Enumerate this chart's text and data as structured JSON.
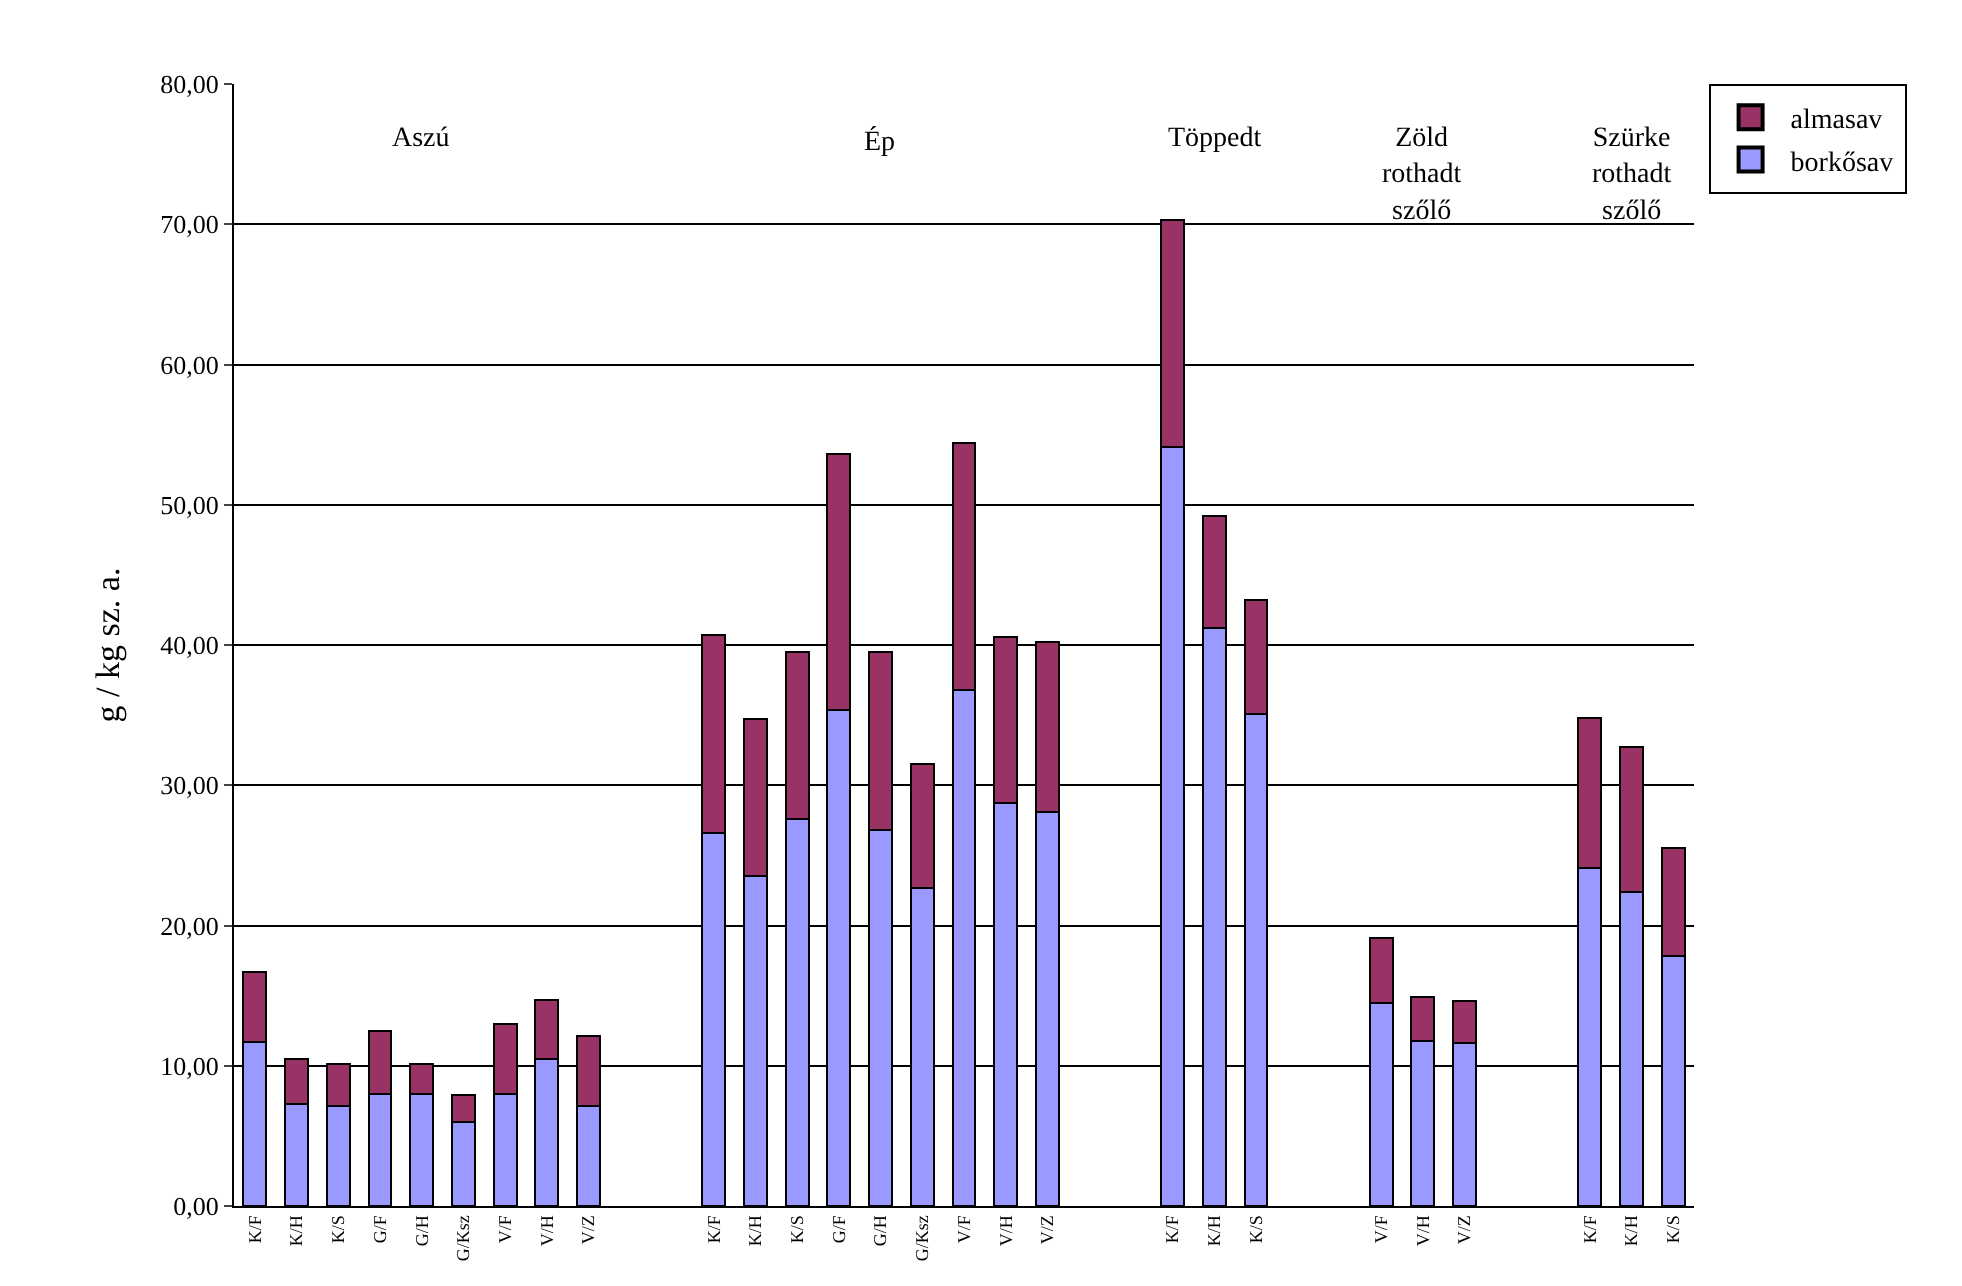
{
  "chart_data": {
    "type": "bar",
    "stacked": true,
    "ylabel": "g / kg sz. a.",
    "categories": [
      "K/F",
      "K/H",
      "K/S",
      "G/F",
      "G/H",
      "G/Ksz",
      "V/F",
      "V/H",
      "V/Z",
      null,
      null,
      "K/F",
      "K/H",
      "K/S",
      "G/F",
      "G/H",
      "G/Ksz",
      "V/F",
      "V/H",
      "V/Z",
      null,
      null,
      "K/F",
      "K/H",
      "K/S",
      null,
      null,
      "V/F",
      "V/H",
      "V/Z",
      null,
      null,
      "K/F",
      "K/H",
      "K/S"
    ],
    "series": [
      {
        "name": "borkősav",
        "color": "#9999ff",
        "values": [
          11.7,
          7.3,
          7.1,
          8.0,
          8.0,
          6.0,
          8.0,
          10.5,
          7.1,
          null,
          null,
          26.6,
          23.5,
          27.6,
          35.4,
          26.8,
          22.7,
          36.8,
          28.7,
          28.1,
          null,
          null,
          54.1,
          41.2,
          35.1,
          null,
          null,
          14.5,
          11.8,
          11.6,
          null,
          null,
          24.1,
          22.4,
          17.8
        ]
      },
      {
        "name": "almasav",
        "color": "#993366",
        "values": [
          5.0,
          3.2,
          3.0,
          4.5,
          2.1,
          1.9,
          5.0,
          4.2,
          5.0,
          null,
          null,
          14.1,
          11.2,
          11.9,
          18.2,
          12.7,
          8.8,
          17.6,
          11.9,
          12.1,
          null,
          null,
          16.2,
          8.0,
          8.1,
          null,
          null,
          4.6,
          3.1,
          3.0,
          null,
          null,
          10.7,
          10.3,
          7.7
        ]
      }
    ],
    "ylim": [
      0,
      80
    ],
    "yticks": [
      {
        "value": 0,
        "label": "0,00"
      },
      {
        "value": 10,
        "label": "10,00"
      },
      {
        "value": 20,
        "label": "20,00"
      },
      {
        "value": 30,
        "label": "30,00"
      },
      {
        "value": 40,
        "label": "40,00"
      },
      {
        "value": 50,
        "label": "50,00"
      },
      {
        "value": 60,
        "label": "60,00"
      },
      {
        "value": 70,
        "label": "70,00"
      },
      {
        "value": 80,
        "label": "80,00"
      }
    ],
    "grid": "y",
    "legend": "top right",
    "annotations": [
      "Aszú",
      "Ép",
      "Töppedt",
      "Zöld\nrothadt\nszőlő",
      "Szürke\nrothadt\nszőlő"
    ]
  }
}
